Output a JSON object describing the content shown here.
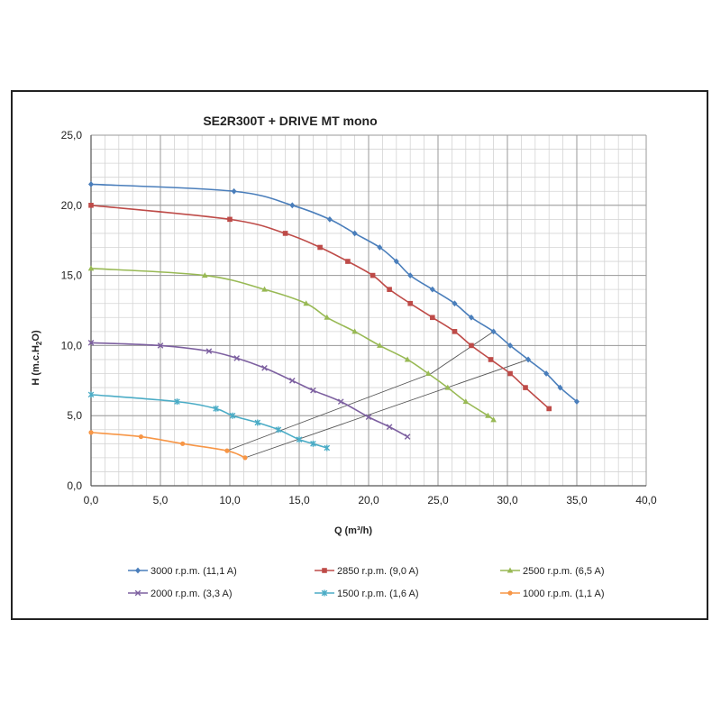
{
  "chart_data": {
    "type": "line",
    "title": "SE2R300T + DRIVE MT mono",
    "xlabel_main": "Q",
    "xlabel_unit": "(m³/h)",
    "ylabel_main": "H",
    "ylabel_unit_prefix": "(m.c.H",
    "ylabel_sub": "2",
    "ylabel_unit_suffix": "O)",
    "xlim": [
      0,
      40
    ],
    "ylim": [
      0,
      25
    ],
    "x_ticks": [
      0,
      5,
      10,
      15,
      20,
      25,
      30,
      35,
      40
    ],
    "x_tick_labels": [
      "0,0",
      "5,0",
      "10,0",
      "15,0",
      "20,0",
      "25,0",
      "30,0",
      "35,0",
      "40,0"
    ],
    "y_ticks": [
      0,
      5,
      10,
      15,
      20,
      25
    ],
    "y_tick_labels": [
      "0,0",
      "5,0",
      "10,0",
      "15,0",
      "20,0",
      "25,0"
    ],
    "grid": true,
    "legend_position": "bottom",
    "series": [
      {
        "name": "3000 r.p.m. (11,1 A)",
        "color": "#4a7ebb",
        "marker": "diamond",
        "x": [
          0,
          10.3,
          14.5,
          17.2,
          19.0,
          20.8,
          22.0,
          23.0,
          24.6,
          26.2,
          27.4,
          29.0,
          30.2,
          31.5,
          32.8,
          33.8,
          35.0
        ],
        "y": [
          21.5,
          21.0,
          20.0,
          19.0,
          18.0,
          17.0,
          16.0,
          15.0,
          14.0,
          13.0,
          12.0,
          11.0,
          10.0,
          9.0,
          8.0,
          7.0,
          6.0
        ]
      },
      {
        "name": "2850 r.p.m. (9,0 A)",
        "color": "#be4b48",
        "marker": "square",
        "x": [
          0,
          10.0,
          14.0,
          16.5,
          18.5,
          20.3,
          21.5,
          23.0,
          24.6,
          26.2,
          27.4,
          28.8,
          30.2,
          31.3,
          33.0
        ],
        "y": [
          20.0,
          19.0,
          18.0,
          17.0,
          16.0,
          15.0,
          14.0,
          13.0,
          12.0,
          11.0,
          10.0,
          9.0,
          8.0,
          7.0,
          5.5
        ]
      },
      {
        "name": "2500 r.p.m. (6,5 A)",
        "color": "#98b954",
        "marker": "triangle",
        "x": [
          0,
          8.2,
          12.5,
          15.5,
          17.0,
          19.0,
          20.8,
          22.8,
          24.3,
          25.7,
          27.0,
          28.6,
          29.0
        ],
        "y": [
          15.5,
          15.0,
          14.0,
          13.0,
          12.0,
          11.0,
          10.0,
          9.0,
          8.0,
          7.0,
          6.0,
          5.0,
          4.7
        ]
      },
      {
        "name": "2000 r.p.m. (3,3 A)",
        "color": "#7d60a0",
        "marker": "x",
        "x": [
          0,
          5.0,
          8.5,
          10.5,
          12.5,
          14.5,
          16.0,
          18.0,
          20.0,
          21.5,
          22.8
        ],
        "y": [
          10.2,
          10.0,
          9.6,
          9.1,
          8.4,
          7.5,
          6.8,
          6.0,
          4.9,
          4.2,
          3.5
        ]
      },
      {
        "name": "1500 r.p.m. (1,6 A)",
        "color": "#4bacc6",
        "marker": "star",
        "x": [
          0,
          6.2,
          9.0,
          10.2,
          12.0,
          13.5,
          15.0,
          16.0,
          17.0
        ],
        "y": [
          6.5,
          6.0,
          5.5,
          5.0,
          4.5,
          4.0,
          3.3,
          3.0,
          2.7
        ]
      },
      {
        "name": "1000 r.p.m. (1,1 A)",
        "color": "#f79646",
        "marker": "circle",
        "x": [
          0,
          3.6,
          6.6,
          9.8,
          11.1
        ],
        "y": [
          3.8,
          3.5,
          3.0,
          2.5,
          2.0
        ]
      }
    ],
    "guide_lines": [
      {
        "color": "#555555",
        "x": [
          9.8,
          24.5,
          29.0
        ],
        "y": [
          2.5,
          8.0,
          11.0
        ]
      },
      {
        "color": "#555555",
        "x": [
          11.1,
          31.5
        ],
        "y": [
          2.0,
          9.0
        ]
      }
    ]
  }
}
